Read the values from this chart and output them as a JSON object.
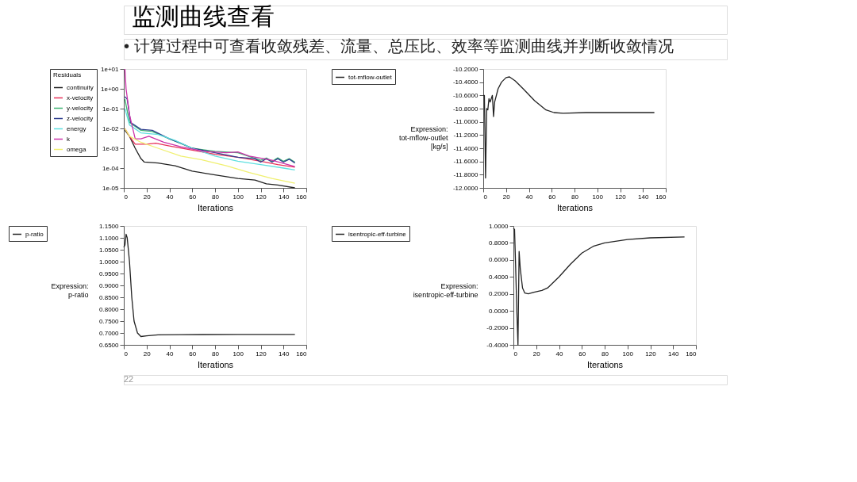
{
  "chart_data": [
    {
      "type": "other",
      "title": "监测曲线查看",
      "annotations": [
        "• 计算过程中可查看收敛残差、流量、总压比、效率等监测曲线并判断收敛情况",
        "22"
      ]
    },
    {
      "type": "line",
      "legend_title": "Residuals",
      "xlabel": "Iterations",
      "log": "y",
      "legend": "top left",
      "grid": false,
      "xlim": [
        0,
        160
      ],
      "xticks": [
        0,
        20,
        40,
        60,
        80,
        100,
        120,
        140,
        160
      ],
      "ylim": [
        1e-05,
        10
      ],
      "yticks": [
        {
          "value": 1e-05,
          "label": "1e-05"
        },
        {
          "value": 0.0001,
          "label": "1e-04"
        },
        {
          "value": 0.001,
          "label": "1e-03"
        },
        {
          "value": 0.01,
          "label": "1e-02"
        },
        {
          "value": 0.1,
          "label": "1e-01"
        },
        {
          "value": 1,
          "label": "1e+00"
        },
        {
          "value": 10,
          "label": "1e+01"
        }
      ],
      "series": [
        {
          "name": "continuity",
          "color": "#222222",
          "x": [
            1,
            5,
            10,
            15,
            18,
            30,
            45,
            60,
            80,
            100,
            115,
            125,
            135,
            150
          ],
          "values": [
            0.008,
            0.004,
            0.001,
            0.0003,
            0.0002,
            0.00018,
            0.00013,
            7e-05,
            4.5e-05,
            3e-05,
            2.5e-05,
            1.6e-05,
            1.4e-05,
            1e-05
          ]
        },
        {
          "name": "x-velocity",
          "color": "#e8335a",
          "x": [
            1,
            5,
            10,
            20,
            28,
            40,
            60,
            80,
            100,
            120,
            135,
            150
          ],
          "values": [
            0.01,
            0.004,
            0.0016,
            0.0016,
            0.0018,
            0.0013,
            0.0008,
            0.0005,
            0.00035,
            0.00022,
            0.00015,
            0.00011
          ]
        },
        {
          "name": "y-velocity",
          "color": "#3cb371",
          "x": [
            1,
            5,
            15,
            25,
            40,
            60,
            80,
            100,
            120,
            125,
            130,
            135,
            140,
            145,
            150
          ],
          "values": [
            0.3,
            0.02,
            0.008,
            0.007,
            0.003,
            0.001,
            0.0007,
            0.0006,
            0.00025,
            0.00032,
            0.00022,
            0.00033,
            0.00022,
            0.0003,
            0.0002
          ]
        },
        {
          "name": "z-velocity",
          "color": "#2f3f8f",
          "x": [
            1,
            3,
            6,
            15,
            25,
            40,
            50,
            60,
            80,
            100,
            115,
            120,
            125,
            130,
            135,
            140,
            145,
            150
          ],
          "values": [
            0.4,
            0.3,
            0.02,
            0.009,
            0.008,
            0.003,
            0.0018,
            0.001,
            0.0006,
            0.00035,
            0.0003,
            0.0002,
            0.0003,
            0.0002,
            0.0003,
            0.0002,
            0.00028,
            0.00018
          ]
        },
        {
          "name": "energy",
          "color": "#5fe0e0",
          "x": [
            1,
            5,
            15,
            30,
            45,
            60,
            80,
            100,
            120,
            140,
            150
          ],
          "values": [
            0.1,
            0.015,
            0.006,
            0.005,
            0.0025,
            0.001,
            0.0004,
            0.00022,
            0.00015,
            0.0001,
            8e-05
          ]
        },
        {
          "name": "k",
          "color": "#cc33aa",
          "x": [
            1,
            2,
            5,
            10,
            15,
            22,
            35,
            50,
            70,
            90,
            100,
            110,
            130,
            150
          ],
          "values": [
            10,
            1,
            0.05,
            0.003,
            0.003,
            0.004,
            0.002,
            0.0012,
            0.0007,
            0.0006,
            0.00065,
            0.0004,
            0.00025,
            0.00012
          ]
        },
        {
          "name": "omega",
          "color": "#f0f070",
          "x": [
            1,
            5,
            15,
            30,
            50,
            70,
            90,
            110,
            130,
            150
          ],
          "values": [
            0.01,
            0.004,
            0.002,
            0.001,
            0.0004,
            0.00025,
            0.00013,
            6e-05,
            3e-05,
            1.7e-05
          ]
        }
      ]
    },
    {
      "type": "line",
      "xlabel": "Iterations",
      "ylabel": "Expression:\ntot-mflow-outlet\n[kg/s]",
      "legend": "top left",
      "grid": false,
      "xlim": [
        0,
        160
      ],
      "xticks": [
        0,
        20,
        40,
        60,
        80,
        100,
        120,
        140,
        160
      ],
      "ylim": [
        -12,
        -10.2
      ],
      "yticks": [
        {
          "value": -12,
          "label": "-12.0000"
        },
        {
          "value": -11.8,
          "label": "-11.8000"
        },
        {
          "value": -11.6,
          "label": "-11.6000"
        },
        {
          "value": -11.4,
          "label": "-11.4000"
        },
        {
          "value": -11.2,
          "label": "-11.2000"
        },
        {
          "value": -11,
          "label": "-11.0000"
        },
        {
          "value": -10.8,
          "label": "-10.8000"
        },
        {
          "value": -10.6,
          "label": "-10.6000"
        },
        {
          "value": -10.4,
          "label": "-10.4000"
        },
        {
          "value": -10.2,
          "label": "-10.2000"
        }
      ],
      "series": [
        {
          "name": "tot-mflow-outlet",
          "color": "#222222",
          "x": [
            0,
            1,
            2,
            3,
            4,
            5,
            6,
            7,
            8,
            9,
            10,
            13,
            16,
            20,
            23,
            28,
            35,
            45,
            55,
            62,
            70,
            90,
            120,
            150
          ],
          "values": [
            -10.6,
            -10.6,
            -11.85,
            -10.8,
            -10.82,
            -10.65,
            -10.7,
            -10.65,
            -10.6,
            -10.92,
            -10.7,
            -10.5,
            -10.4,
            -10.33,
            -10.32,
            -10.38,
            -10.5,
            -10.68,
            -10.82,
            -10.86,
            -10.87,
            -10.86,
            -10.86,
            -10.86
          ]
        }
      ]
    },
    {
      "type": "line",
      "xlabel": "Iterations",
      "ylabel": "Expression:\np-ratio",
      "legend": "top left",
      "grid": false,
      "xlim": [
        0,
        160
      ],
      "xticks": [
        0,
        20,
        40,
        60,
        80,
        100,
        120,
        140,
        160
      ],
      "ylim": [
        0.65,
        1.15
      ],
      "yticks": [
        {
          "value": 0.65,
          "label": "0.6500"
        },
        {
          "value": 0.7,
          "label": "0.7000"
        },
        {
          "value": 0.75,
          "label": "0.7500"
        },
        {
          "value": 0.8,
          "label": "0.8000"
        },
        {
          "value": 0.85,
          "label": "0.8500"
        },
        {
          "value": 0.9,
          "label": "0.9000"
        },
        {
          "value": 0.95,
          "label": "0.9500"
        },
        {
          "value": 1,
          "label": "1.0000"
        },
        {
          "value": 1.05,
          "label": "1.0500"
        },
        {
          "value": 1.1,
          "label": "1.1000"
        },
        {
          "value": 1.15,
          "label": "1.1500"
        }
      ],
      "series": [
        {
          "name": "p-ratio",
          "color": "#222222",
          "x": [
            0,
            1,
            2,
            3,
            5,
            7,
            9,
            12,
            15,
            20,
            30,
            50,
            100,
            150
          ],
          "values": [
            1.06,
            1.07,
            1.115,
            1.1,
            1.0,
            0.85,
            0.75,
            0.7,
            0.685,
            0.688,
            0.692,
            0.693,
            0.694,
            0.694
          ]
        }
      ]
    },
    {
      "type": "line",
      "xlabel": "Iterations",
      "ylabel": "Expression:\nisentropic-eff-turbine",
      "legend": "top left",
      "grid": false,
      "xlim": [
        0,
        160
      ],
      "xticks": [
        0,
        20,
        40,
        60,
        80,
        100,
        120,
        140,
        160
      ],
      "ylim": [
        -0.4,
        1.0
      ],
      "yticks": [
        {
          "value": -0.4,
          "label": "-0.4000"
        },
        {
          "value": -0.2,
          "label": "-0.2000"
        },
        {
          "value": 0,
          "label": "0.0000"
        },
        {
          "value": 0.2,
          "label": "0.2000"
        },
        {
          "value": 0.4,
          "label": "0.4000"
        },
        {
          "value": 0.6,
          "label": "0.6000"
        },
        {
          "value": 0.8,
          "label": "0.8000"
        },
        {
          "value": 1.0,
          "label": "1.0000"
        }
      ],
      "series": [
        {
          "name": "isentropic-eff-turbine",
          "color": "#222222",
          "x": [
            0,
            1,
            2,
            3,
            4,
            5,
            6,
            8,
            10,
            13,
            18,
            25,
            30,
            40,
            50,
            60,
            70,
            80,
            100,
            120,
            150
          ],
          "values": [
            0.97,
            0.96,
            0.5,
            0.0,
            -0.4,
            0.7,
            0.5,
            0.27,
            0.21,
            0.2,
            0.22,
            0.24,
            0.27,
            0.4,
            0.55,
            0.68,
            0.76,
            0.8,
            0.84,
            0.86,
            0.87
          ]
        }
      ]
    }
  ]
}
